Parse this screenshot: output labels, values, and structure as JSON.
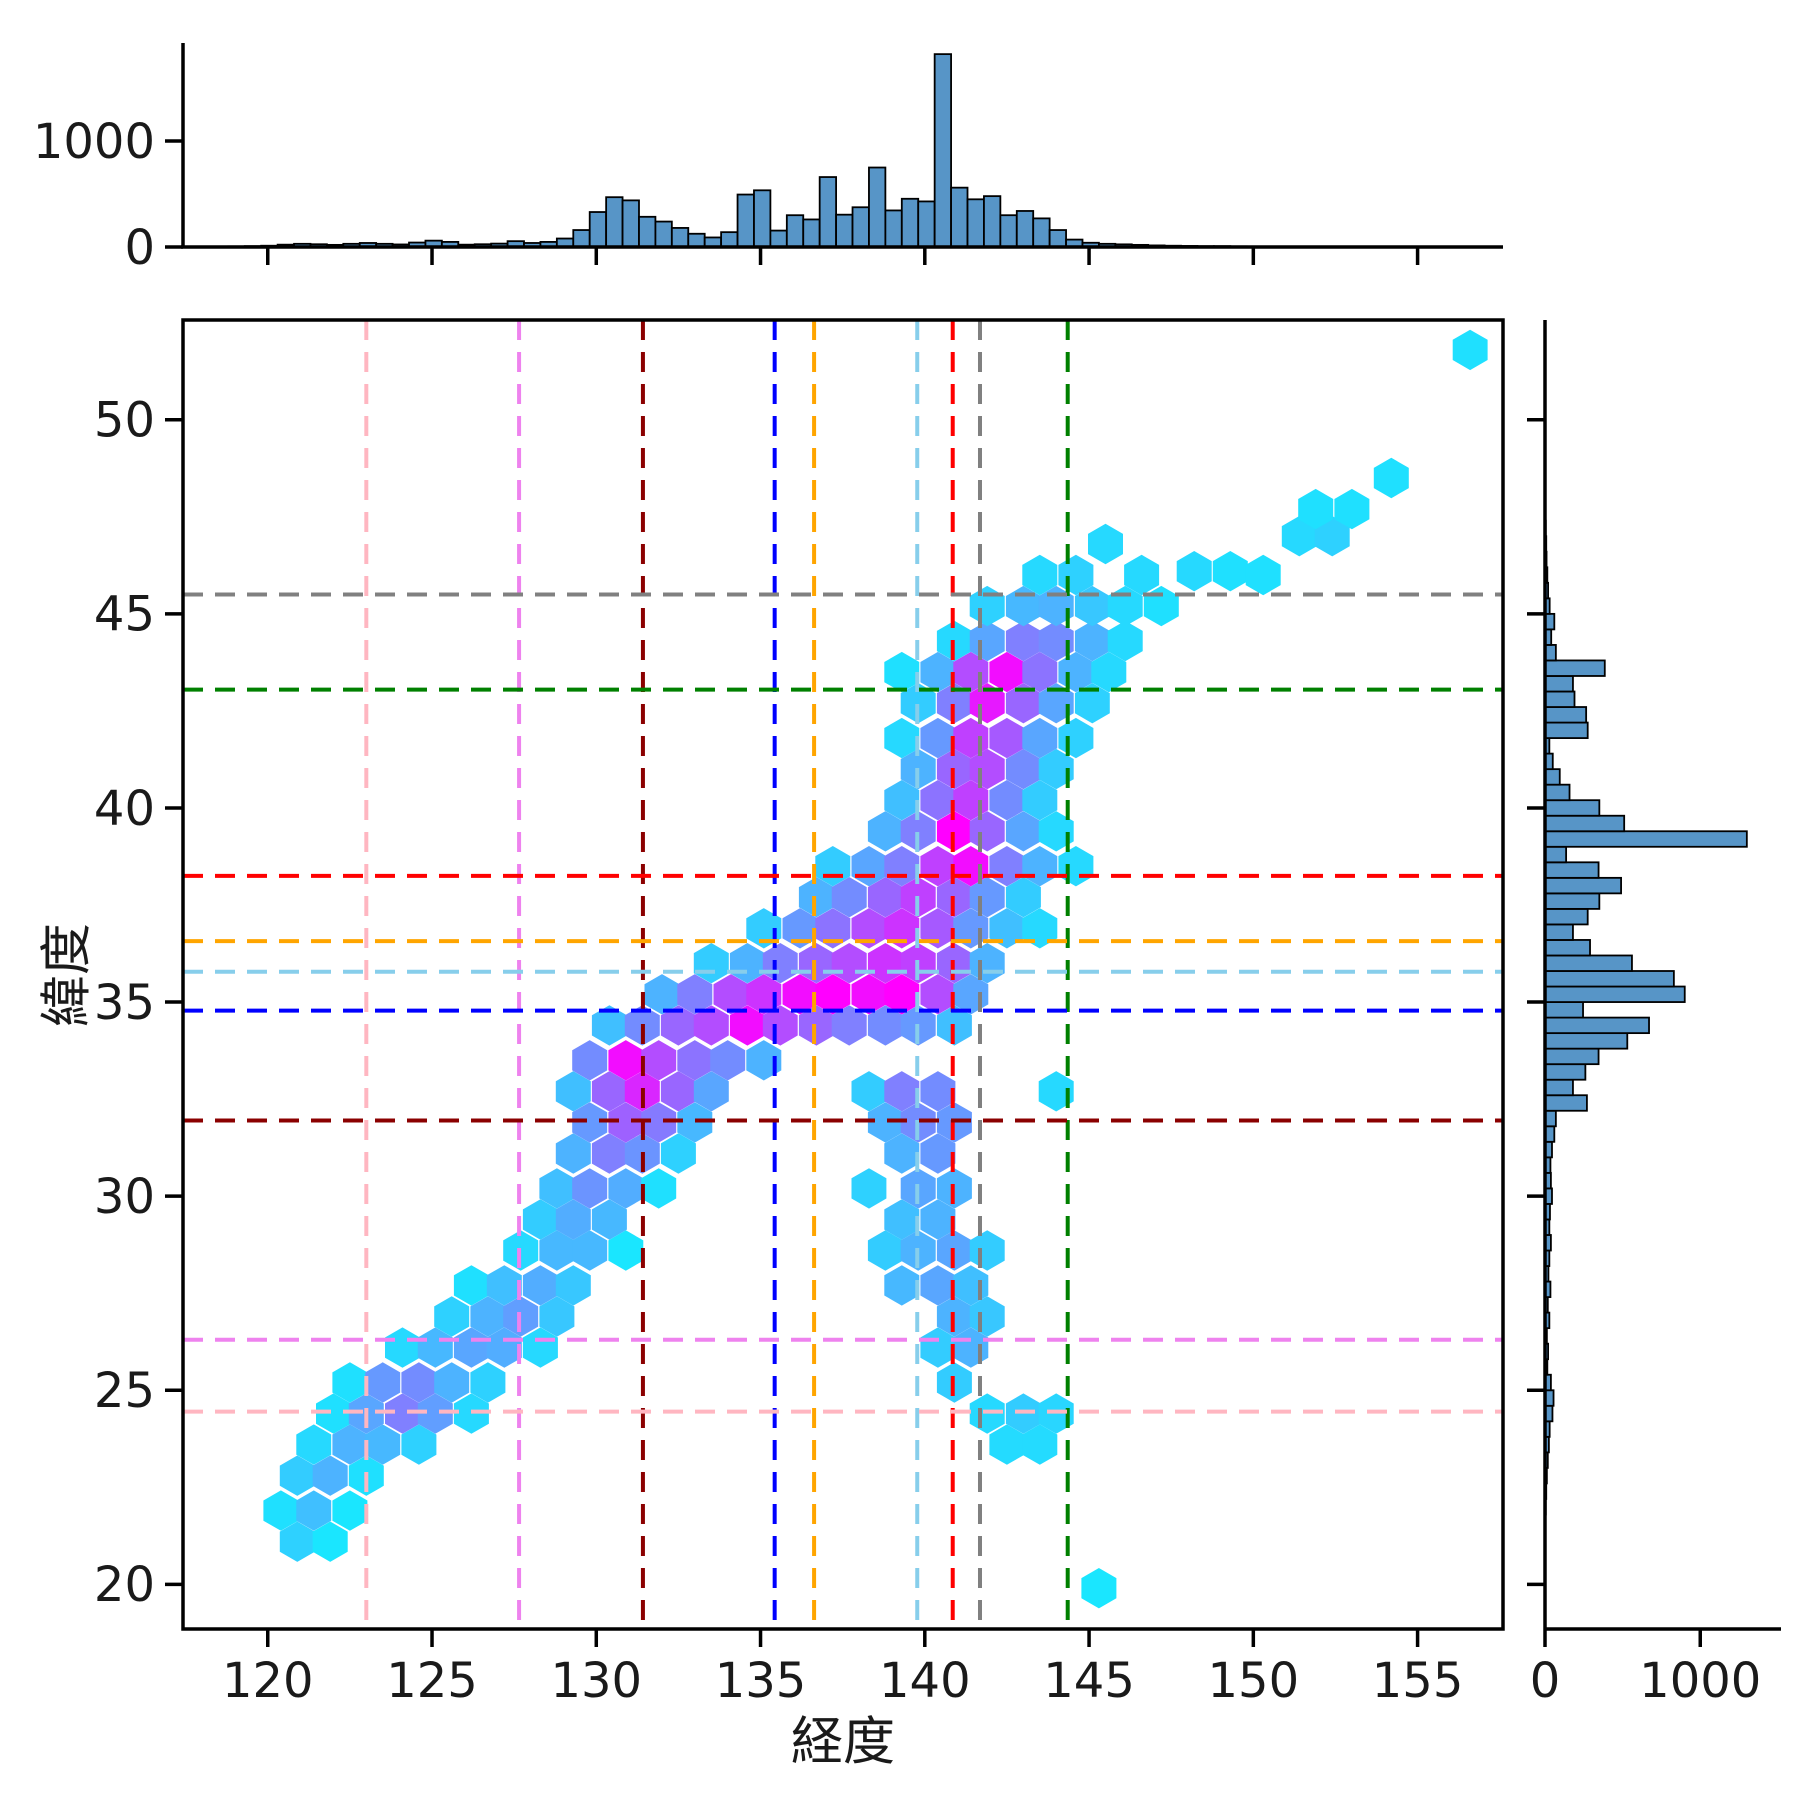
{
  "colors": {
    "bar_fill": "#5795c7",
    "bar_edge": "#000000",
    "axis": "#000000",
    "text": "#1a1a1a",
    "background": "#ffffff"
  },
  "chart_data": {
    "type": "hexbin",
    "title": "",
    "xlabel": "経度",
    "ylabel": "緯度",
    "legend": "none",
    "grid": false,
    "main": {
      "xlim": [
        117.42,
        157.6
      ],
      "ylim": [
        18.85,
        52.57
      ],
      "xticks": [
        120,
        125,
        130,
        135,
        140,
        145,
        150,
        155
      ],
      "yticks": [
        20,
        25,
        30,
        35,
        40,
        45,
        50
      ]
    },
    "hexbin": {
      "colormap": "cool",
      "hex_width_deg": 1.065,
      "cells": [
        [
          145.3,
          19.9,
          0.1
        ],
        [
          156.6,
          51.8,
          0.12
        ],
        [
          120.9,
          21.1,
          0.18
        ],
        [
          121.9,
          21.1,
          0.1
        ],
        [
          120.4,
          21.9,
          0.12
        ],
        [
          121.4,
          21.9,
          0.25
        ],
        [
          122.5,
          21.9,
          0.1
        ],
        [
          120.9,
          22.8,
          0.2
        ],
        [
          121.9,
          22.8,
          0.3
        ],
        [
          123.0,
          22.8,
          0.12
        ],
        [
          121.4,
          23.6,
          0.15
        ],
        [
          122.5,
          23.6,
          0.3
        ],
        [
          123.5,
          23.6,
          0.28
        ],
        [
          124.6,
          23.6,
          0.18
        ],
        [
          122.0,
          24.4,
          0.12
        ],
        [
          123.0,
          24.4,
          0.35
        ],
        [
          124.1,
          24.4,
          0.5
        ],
        [
          125.1,
          24.4,
          0.38
        ],
        [
          126.2,
          24.4,
          0.15
        ],
        [
          122.5,
          25.2,
          0.12
        ],
        [
          123.5,
          25.2,
          0.4
        ],
        [
          124.6,
          25.2,
          0.45
        ],
        [
          125.6,
          25.2,
          0.3
        ],
        [
          126.7,
          25.2,
          0.18
        ],
        [
          124.1,
          26.1,
          0.15
        ],
        [
          125.1,
          26.1,
          0.28
        ],
        [
          126.2,
          26.1,
          0.35
        ],
        [
          127.2,
          26.1,
          0.32
        ],
        [
          128.3,
          26.1,
          0.15
        ],
        [
          125.6,
          26.9,
          0.18
        ],
        [
          126.7,
          26.9,
          0.3
        ],
        [
          127.7,
          26.9,
          0.38
        ],
        [
          128.8,
          26.9,
          0.22
        ],
        [
          126.2,
          27.7,
          0.12
        ],
        [
          127.2,
          27.7,
          0.25
        ],
        [
          128.3,
          27.7,
          0.32
        ],
        [
          129.3,
          27.7,
          0.22
        ],
        [
          127.7,
          28.6,
          0.15
        ],
        [
          128.8,
          28.6,
          0.28
        ],
        [
          129.8,
          28.6,
          0.28
        ],
        [
          130.9,
          28.6,
          0.1
        ],
        [
          128.3,
          29.4,
          0.2
        ],
        [
          129.3,
          29.4,
          0.32
        ],
        [
          130.4,
          29.4,
          0.28
        ],
        [
          128.8,
          30.2,
          0.25
        ],
        [
          129.8,
          30.2,
          0.42
        ],
        [
          130.9,
          30.2,
          0.32
        ],
        [
          131.9,
          30.2,
          0.12
        ],
        [
          129.3,
          31.1,
          0.3
        ],
        [
          130.4,
          31.1,
          0.5
        ],
        [
          131.4,
          31.1,
          0.42
        ],
        [
          132.5,
          31.1,
          0.18
        ],
        [
          129.8,
          31.9,
          0.4
        ],
        [
          130.9,
          31.9,
          0.62
        ],
        [
          131.9,
          31.9,
          0.52
        ],
        [
          133.0,
          31.9,
          0.28
        ],
        [
          129.3,
          32.7,
          0.25
        ],
        [
          130.4,
          32.7,
          0.6
        ],
        [
          131.4,
          32.7,
          0.85
        ],
        [
          132.5,
          32.7,
          0.6
        ],
        [
          133.5,
          32.7,
          0.35
        ],
        [
          129.8,
          33.5,
          0.45
        ],
        [
          130.9,
          33.5,
          0.95
        ],
        [
          131.9,
          33.5,
          0.7
        ],
        [
          133.0,
          33.5,
          0.55
        ],
        [
          134.0,
          33.5,
          0.45
        ],
        [
          135.1,
          33.5,
          0.3
        ],
        [
          130.4,
          34.4,
          0.25
        ],
        [
          131.4,
          34.4,
          0.45
        ],
        [
          132.5,
          34.4,
          0.6
        ],
        [
          133.5,
          34.4,
          0.7
        ],
        [
          134.6,
          34.4,
          0.95
        ],
        [
          135.6,
          34.4,
          0.7
        ],
        [
          136.7,
          34.4,
          0.6
        ],
        [
          137.7,
          34.4,
          0.5
        ],
        [
          138.8,
          34.4,
          0.45
        ],
        [
          139.8,
          34.4,
          0.4
        ],
        [
          140.9,
          34.4,
          0.25
        ],
        [
          132.0,
          35.2,
          0.3
        ],
        [
          133.0,
          35.2,
          0.5
        ],
        [
          134.1,
          35.2,
          0.7
        ],
        [
          135.1,
          35.2,
          0.8
        ],
        [
          136.2,
          35.2,
          0.95
        ],
        [
          137.2,
          35.2,
          1.0
        ],
        [
          138.3,
          35.2,
          0.95
        ],
        [
          139.3,
          35.2,
          1.0
        ],
        [
          140.4,
          35.2,
          0.7
        ],
        [
          141.4,
          35.2,
          0.35
        ],
        [
          133.5,
          36.0,
          0.2
        ],
        [
          134.6,
          36.0,
          0.3
        ],
        [
          135.6,
          36.0,
          0.5
        ],
        [
          136.7,
          36.0,
          0.6
        ],
        [
          137.7,
          36.0,
          0.7
        ],
        [
          138.8,
          36.0,
          0.8
        ],
        [
          139.8,
          36.0,
          0.75
        ],
        [
          140.9,
          36.0,
          0.6
        ],
        [
          141.9,
          36.0,
          0.3
        ],
        [
          135.1,
          36.9,
          0.2
        ],
        [
          136.2,
          36.9,
          0.4
        ],
        [
          137.2,
          36.9,
          0.55
        ],
        [
          138.3,
          36.9,
          0.7
        ],
        [
          139.3,
          36.9,
          0.8
        ],
        [
          140.4,
          36.9,
          0.65
        ],
        [
          141.4,
          36.9,
          0.4
        ],
        [
          142.5,
          36.9,
          0.25
        ],
        [
          143.5,
          36.9,
          0.15
        ],
        [
          136.7,
          37.7,
          0.3
        ],
        [
          137.7,
          37.7,
          0.45
        ],
        [
          138.8,
          37.7,
          0.6
        ],
        [
          139.8,
          37.7,
          0.75
        ],
        [
          140.9,
          37.7,
          0.6
        ],
        [
          141.9,
          37.7,
          0.4
        ],
        [
          143.0,
          37.7,
          0.2
        ],
        [
          137.2,
          38.5,
          0.2
        ],
        [
          138.3,
          38.5,
          0.35
        ],
        [
          139.3,
          38.5,
          0.5
        ],
        [
          140.4,
          38.5,
          0.75
        ],
        [
          141.4,
          38.5,
          0.95
        ],
        [
          142.5,
          38.5,
          0.5
        ],
        [
          143.5,
          38.5,
          0.3
        ],
        [
          144.6,
          38.5,
          0.15
        ],
        [
          138.8,
          39.4,
          0.3
        ],
        [
          139.8,
          39.4,
          0.5
        ],
        [
          140.9,
          39.4,
          1.0
        ],
        [
          141.9,
          39.4,
          0.6
        ],
        [
          143.0,
          39.4,
          0.35
        ],
        [
          144.0,
          39.4,
          0.15
        ],
        [
          139.3,
          40.2,
          0.25
        ],
        [
          140.4,
          40.2,
          0.55
        ],
        [
          141.4,
          40.2,
          0.75
        ],
        [
          142.5,
          40.2,
          0.45
        ],
        [
          143.5,
          40.2,
          0.2
        ],
        [
          139.8,
          41.0,
          0.3
        ],
        [
          140.9,
          41.0,
          0.6
        ],
        [
          141.9,
          41.0,
          0.7
        ],
        [
          143.0,
          41.0,
          0.45
        ],
        [
          144.0,
          41.0,
          0.2
        ],
        [
          139.3,
          41.8,
          0.15
        ],
        [
          140.4,
          41.8,
          0.4
        ],
        [
          141.4,
          41.8,
          0.75
        ],
        [
          142.5,
          41.8,
          0.65
        ],
        [
          143.5,
          41.8,
          0.35
        ],
        [
          144.6,
          41.8,
          0.18
        ],
        [
          139.8,
          42.7,
          0.2
        ],
        [
          140.9,
          42.7,
          0.5
        ],
        [
          141.9,
          42.7,
          0.9
        ],
        [
          143.0,
          42.7,
          0.6
        ],
        [
          144.0,
          42.7,
          0.35
        ],
        [
          145.1,
          42.7,
          0.18
        ],
        [
          139.3,
          43.5,
          0.12
        ],
        [
          140.4,
          43.5,
          0.3
        ],
        [
          141.4,
          43.5,
          0.7
        ],
        [
          142.5,
          43.5,
          0.95
        ],
        [
          143.5,
          43.5,
          0.55
        ],
        [
          144.6,
          43.5,
          0.3
        ],
        [
          145.6,
          43.5,
          0.15
        ],
        [
          140.9,
          44.3,
          0.15
        ],
        [
          141.9,
          44.3,
          0.35
        ],
        [
          143.0,
          44.3,
          0.5
        ],
        [
          144.0,
          44.3,
          0.45
        ],
        [
          145.1,
          44.3,
          0.3
        ],
        [
          146.1,
          44.3,
          0.15
        ],
        [
          141.9,
          45.2,
          0.18
        ],
        [
          143.0,
          45.2,
          0.28
        ],
        [
          144.0,
          45.2,
          0.3
        ],
        [
          145.1,
          45.2,
          0.22
        ],
        [
          146.1,
          45.2,
          0.15
        ],
        [
          147.2,
          45.2,
          0.12
        ],
        [
          143.5,
          46.0,
          0.15
        ],
        [
          144.6,
          46.0,
          0.18
        ],
        [
          146.6,
          46.0,
          0.15
        ],
        [
          148.2,
          46.1,
          0.15
        ],
        [
          149.3,
          46.1,
          0.12
        ],
        [
          150.3,
          46.0,
          0.12
        ],
        [
          145.5,
          46.8,
          0.15
        ],
        [
          151.4,
          47.0,
          0.15
        ],
        [
          152.4,
          47.0,
          0.18
        ],
        [
          151.9,
          47.7,
          0.12
        ],
        [
          153.0,
          47.7,
          0.12
        ],
        [
          154.2,
          48.5,
          0.12
        ],
        [
          138.3,
          32.7,
          0.2
        ],
        [
          139.3,
          32.7,
          0.5
        ],
        [
          140.4,
          32.7,
          0.45
        ],
        [
          144.0,
          32.7,
          0.15
        ],
        [
          138.8,
          31.9,
          0.3
        ],
        [
          139.8,
          31.9,
          0.45
        ],
        [
          140.9,
          31.9,
          0.4
        ],
        [
          139.3,
          31.1,
          0.3
        ],
        [
          140.4,
          31.1,
          0.4
        ],
        [
          138.3,
          30.2,
          0.18
        ],
        [
          139.8,
          30.2,
          0.35
        ],
        [
          140.9,
          30.2,
          0.3
        ],
        [
          139.3,
          29.4,
          0.25
        ],
        [
          140.4,
          29.4,
          0.3
        ],
        [
          138.8,
          28.6,
          0.2
        ],
        [
          139.8,
          28.6,
          0.3
        ],
        [
          140.9,
          28.6,
          0.35
        ],
        [
          141.9,
          28.6,
          0.2
        ],
        [
          139.3,
          27.7,
          0.28
        ],
        [
          140.4,
          27.7,
          0.35
        ],
        [
          141.4,
          27.7,
          0.25
        ],
        [
          140.9,
          26.9,
          0.3
        ],
        [
          141.9,
          26.9,
          0.22
        ],
        [
          140.4,
          26.1,
          0.2
        ],
        [
          141.4,
          26.1,
          0.3
        ],
        [
          140.9,
          25.2,
          0.2
        ],
        [
          141.9,
          24.4,
          0.15
        ],
        [
          143.0,
          24.4,
          0.2
        ],
        [
          144.0,
          24.4,
          0.16
        ],
        [
          142.5,
          23.6,
          0.14
        ],
        [
          143.5,
          23.6,
          0.14
        ]
      ]
    },
    "top_hist": {
      "bin_start": 118.3,
      "bin_width": 0.5,
      "ylim": [
        0,
        1925
      ],
      "yticks": [
        0,
        1000
      ],
      "values": [
        4,
        6,
        8,
        12,
        22,
        30,
        26,
        20,
        30,
        38,
        30,
        24,
        42,
        60,
        48,
        22,
        26,
        32,
        55,
        38,
        48,
        80,
        160,
        330,
        470,
        440,
        285,
        240,
        180,
        125,
        90,
        140,
        495,
        535,
        155,
        300,
        260,
        660,
        305,
        375,
        750,
        345,
        455,
        430,
        1820,
        560,
        450,
        480,
        300,
        340,
        270,
        160,
        70,
        40,
        30,
        25,
        20,
        15,
        12,
        10,
        8,
        8,
        6,
        5,
        4,
        3
      ]
    },
    "right_hist": {
      "bin_start": 21.0,
      "bin_width": 0.4,
      "xlim": [
        0,
        1520
      ],
      "xticks": [
        0,
        1000
      ],
      "values": [
        2,
        3,
        5,
        8,
        12,
        18,
        25,
        30,
        48,
        55,
        38,
        15,
        20,
        12,
        28,
        18,
        35,
        22,
        28,
        38,
        28,
        32,
        45,
        38,
        35,
        45,
        60,
        70,
        270,
        180,
        260,
        345,
        530,
        670,
        245,
        900,
        830,
        560,
        290,
        180,
        275,
        350,
        490,
        345,
        136,
        1300,
        510,
        350,
        158,
        95,
        50,
        28,
        275,
        265,
        190,
        180,
        385,
        70,
        40,
        60,
        30,
        20,
        15,
        10,
        8,
        5
      ]
    },
    "vlines": [
      {
        "x": 123.0,
        "color": "#ffb6c1"
      },
      {
        "x": 127.65,
        "color": "#ee82ee"
      },
      {
        "x": 131.42,
        "color": "#8b0000"
      },
      {
        "x": 135.43,
        "color": "#0000ff"
      },
      {
        "x": 136.63,
        "color": "#ffa500"
      },
      {
        "x": 139.77,
        "color": "#87ceeb"
      },
      {
        "x": 140.85,
        "color": "#ff0000"
      },
      {
        "x": 141.68,
        "color": "#808080"
      },
      {
        "x": 144.35,
        "color": "#008000"
      }
    ],
    "hlines": [
      {
        "y": 24.45,
        "color": "#ffb6c1"
      },
      {
        "y": 26.3,
        "color": "#ee82ee"
      },
      {
        "y": 31.95,
        "color": "#8b0000"
      },
      {
        "y": 34.78,
        "color": "#0000ff"
      },
      {
        "y": 36.57,
        "color": "#ffa500"
      },
      {
        "y": 35.78,
        "color": "#87ceeb"
      },
      {
        "y": 38.25,
        "color": "#ff0000"
      },
      {
        "y": 45.5,
        "color": "#808080"
      },
      {
        "y": 43.05,
        "color": "#008000"
      }
    ]
  }
}
